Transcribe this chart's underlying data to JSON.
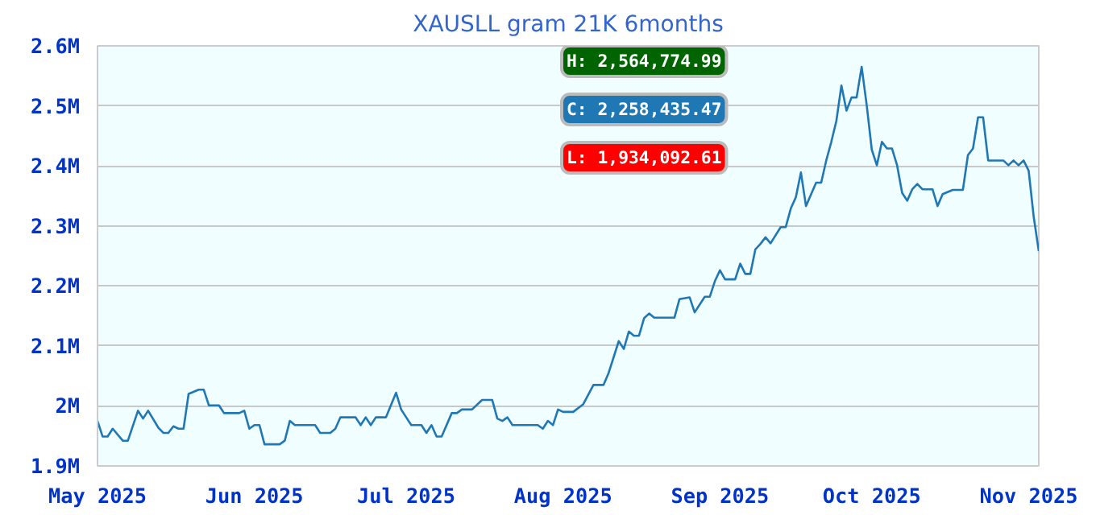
{
  "chart_data": {
    "type": "line",
    "title": "XAUSLL gram 21K 6months",
    "x": [
      "2025-05-01",
      "2025-05-02",
      "2025-05-03",
      "2025-05-04",
      "2025-05-06",
      "2025-05-07",
      "2025-05-09",
      "2025-05-10",
      "2025-05-11",
      "2025-05-13",
      "2025-05-14",
      "2025-05-15",
      "2025-05-16",
      "2025-05-17",
      "2025-05-18",
      "2025-05-19",
      "2025-05-21",
      "2025-05-22",
      "2025-05-23",
      "2025-05-25",
      "2025-05-26",
      "2025-05-29",
      "2025-05-30",
      "2025-05-31",
      "2025-06-01",
      "2025-06-02",
      "2025-06-03",
      "2025-06-06",
      "2025-06-07",
      "2025-06-08",
      "2025-06-09",
      "2025-06-13",
      "2025-06-14",
      "2025-06-16",
      "2025-06-17",
      "2025-06-18",
      "2025-06-21",
      "2025-06-22",
      "2025-06-23",
      "2025-06-24",
      "2025-06-25",
      "2025-06-27",
      "2025-06-29",
      "2025-06-30",
      "2025-07-02",
      "2025-07-04",
      "2025-07-05",
      "2025-07-06",
      "2025-07-07",
      "2025-07-08",
      "2025-07-10",
      "2025-07-11",
      "2025-07-12",
      "2025-07-14",
      "2025-07-16",
      "2025-07-18",
      "2025-07-19",
      "2025-07-20",
      "2025-07-21",
      "2025-07-22",
      "2025-07-27",
      "2025-07-28",
      "2025-07-29",
      "2025-07-30",
      "2025-07-31",
      "2025-08-01",
      "2025-08-03",
      "2025-08-05",
      "2025-08-07",
      "2025-08-09",
      "2025-08-10",
      "2025-08-12",
      "2025-08-13",
      "2025-08-14",
      "2025-08-15",
      "2025-08-16",
      "2025-08-17",
      "2025-08-18",
      "2025-08-19",
      "2025-08-23",
      "2025-08-24",
      "2025-08-26",
      "2025-08-27",
      "2025-08-29",
      "2025-08-30",
      "2025-08-31",
      "2025-09-01",
      "2025-09-02",
      "2025-09-04",
      "2025-09-05",
      "2025-09-06",
      "2025-09-07",
      "2025-09-08",
      "2025-09-09",
      "2025-09-10",
      "2025-09-11",
      "2025-09-13",
      "2025-09-14",
      "2025-09-15",
      "2025-09-16",
      "2025-09-17",
      "2025-09-18",
      "2025-09-20",
      "2025-09-21",
      "2025-09-22",
      "2025-09-23",
      "2025-09-24",
      "2025-09-25",
      "2025-09-26",
      "2025-09-27",
      "2025-09-28",
      "2025-09-29",
      "2025-09-30",
      "2025-10-01",
      "2025-10-02",
      "2025-10-03",
      "2025-10-04",
      "2025-10-05",
      "2025-10-06",
      "2025-10-07",
      "2025-10-08",
      "2025-10-09",
      "2025-10-10",
      "2025-10-11",
      "2025-10-13",
      "2025-10-14",
      "2025-10-15",
      "2025-10-17",
      "2025-10-19",
      "2025-10-20",
      "2025-10-21",
      "2025-10-22",
      "2025-10-23",
      "2025-10-24",
      "2025-10-27",
      "2025-10-28",
      "2025-10-29",
      "2025-10-30",
      "2025-10-31",
      "2025-11-01",
      "2025-11-02",
      "2025-11-03"
    ],
    "series": [
      {
        "color": "#1f77b4",
        "values": [
          1975000,
          1949000,
          1949000,
          1962000,
          1942000,
          1942000,
          1992000,
          1979000,
          1992000,
          1964000,
          1955000,
          1955000,
          1966000,
          1962000,
          1962000,
          2020000,
          2027000,
          2027000,
          2001000,
          2001000,
          1988000,
          1988000,
          1992000,
          1962000,
          1968000,
          1968000,
          1936000,
          1936000,
          1942000,
          1975000,
          1968000,
          1968000,
          1955000,
          1955000,
          1962000,
          1981000,
          1981000,
          1968000,
          1981000,
          1968000,
          1981000,
          1981000,
          2022000,
          1994000,
          1968000,
          1968000,
          1955000,
          1968000,
          1949000,
          1949000,
          1988000,
          1988000,
          1994000,
          1994000,
          2010000,
          2010000,
          1979000,
          1975000,
          1981000,
          1968000,
          1968000,
          1962000,
          1975000,
          1968000,
          1994000,
          1990000,
          1990000,
          2003000,
          2035000,
          2035000,
          2055000,
          2108000,
          2095000,
          2124000,
          2117000,
          2117000,
          2146000,
          2154000,
          2147000,
          2147000,
          2178000,
          2181000,
          2156000,
          2182000,
          2182000,
          2208000,
          2226000,
          2211000,
          2211000,
          2237000,
          2220000,
          2220000,
          2261000,
          2270000,
          2281000,
          2271000,
          2298000,
          2298000,
          2329000,
          2348000,
          2389000,
          2333000,
          2372000,
          2372000,
          2409000,
          2440000,
          2475000,
          2534000,
          2492000,
          2514000,
          2514000,
          2565000,
          2501000,
          2427000,
          2401000,
          2440000,
          2429000,
          2429000,
          2401000,
          2355000,
          2342000,
          2361000,
          2370000,
          2361000,
          2361000,
          2333000,
          2353000,
          2360000,
          2360000,
          2418000,
          2429000,
          2481000,
          2481000,
          2409000,
          2409000,
          2401000,
          2409000,
          2401000,
          2409000,
          2392000,
          2315000,
          2258000
        ]
      }
    ],
    "xlim": [
      "2025-05-01",
      "2025-11-03"
    ],
    "xticks": [
      {
        "value": "2025-05-01",
        "label": "May 2025"
      },
      {
        "value": "2025-06-01",
        "label": "Jun 2025"
      },
      {
        "value": "2025-07-01",
        "label": "Jul 2025"
      },
      {
        "value": "2025-08-01",
        "label": "Aug 2025"
      },
      {
        "value": "2025-09-01",
        "label": "Sep 2025"
      },
      {
        "value": "2025-10-01",
        "label": "Oct 2025"
      },
      {
        "value": "2025-11-01",
        "label": "Nov 2025"
      }
    ],
    "ylim": [
      1900000,
      2600000
    ],
    "yticks": [
      {
        "value": 1900000,
        "label": "1.9M"
      },
      {
        "value": 2000000,
        "label": "2M"
      },
      {
        "value": 2100000,
        "label": "2.1M"
      },
      {
        "value": 2200000,
        "label": "2.2M"
      },
      {
        "value": 2300000,
        "label": "2.3M"
      },
      {
        "value": 2400000,
        "label": "2.4M"
      },
      {
        "value": 2500000,
        "label": "2.5M"
      },
      {
        "value": 2600000,
        "label": "2.6M"
      }
    ],
    "grid": "y",
    "annotations": [
      "H: 2,564,774.99",
      "C: 2,258,435.47",
      "L: 1,934,092.61"
    ]
  }
}
